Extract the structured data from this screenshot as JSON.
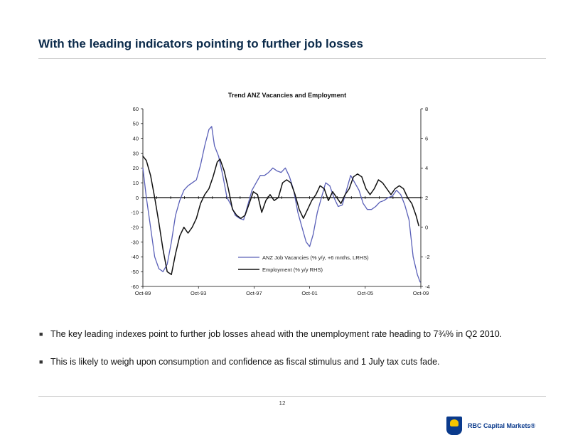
{
  "slide": {
    "title": "With the leading indicators pointing to further job losses",
    "page_number": "12",
    "logo_text": "RBC Capital Markets®"
  },
  "bullets": [
    "The key leading indexes point to further job losses ahead with the unemployment rate heading to 7¾% in Q2 2010.",
    "This is likely to weigh upon consumption and confidence as fiscal stimulus and 1 July tax cuts fade."
  ],
  "colors": {
    "title": "#0b2a4a",
    "vacancies": "#5a60b8",
    "employment": "#111111",
    "brand": "#0a3a8c"
  },
  "chart_data": {
    "type": "line",
    "title": "Trend ANZ Vacancies and Employment",
    "x_tick_labels": [
      "Oct-89",
      "Oct-93",
      "Oct-97",
      "Oct-01",
      "Oct-05",
      "Oct-09"
    ],
    "x_range": [
      1989.75,
      2009.75
    ],
    "y_left": {
      "range": [
        -60,
        60
      ],
      "ticks": [
        60,
        50,
        40,
        30,
        20,
        10,
        0,
        -10,
        -20,
        -30,
        -40,
        -50,
        -60
      ]
    },
    "y_right": {
      "range": [
        -4,
        8
      ],
      "ticks": [
        8,
        6,
        4,
        2,
        0,
        -2,
        -4
      ]
    },
    "legend_position": "bottom-right",
    "series": [
      {
        "name": "ANZ Job Vacancies (% y/y, +6 mnths, LRHS)",
        "axis": "left",
        "color": "#5a60b8",
        "points": [
          [
            1989.75,
            20
          ],
          [
            1990.0,
            0
          ],
          [
            1990.3,
            -20
          ],
          [
            1990.6,
            -40
          ],
          [
            1990.9,
            -48
          ],
          [
            1991.2,
            -50
          ],
          [
            1991.5,
            -45
          ],
          [
            1991.8,
            -30
          ],
          [
            1992.1,
            -12
          ],
          [
            1992.4,
            -2
          ],
          [
            1992.7,
            5
          ],
          [
            1993.0,
            8
          ],
          [
            1993.3,
            10
          ],
          [
            1993.6,
            12
          ],
          [
            1993.9,
            22
          ],
          [
            1994.2,
            35
          ],
          [
            1994.5,
            46
          ],
          [
            1994.7,
            48
          ],
          [
            1994.9,
            35
          ],
          [
            1995.2,
            28
          ],
          [
            1995.5,
            15
          ],
          [
            1995.8,
            0
          ],
          [
            1996.1,
            -5
          ],
          [
            1996.4,
            -12
          ],
          [
            1996.7,
            -14
          ],
          [
            1997.0,
            -15
          ],
          [
            1997.3,
            -5
          ],
          [
            1997.6,
            5
          ],
          [
            1997.9,
            10
          ],
          [
            1998.2,
            15
          ],
          [
            1998.5,
            15
          ],
          [
            1998.8,
            17
          ],
          [
            1999.1,
            20
          ],
          [
            1999.4,
            18
          ],
          [
            1999.7,
            17
          ],
          [
            2000.0,
            20
          ],
          [
            2000.3,
            14
          ],
          [
            2000.6,
            5
          ],
          [
            2000.9,
            -10
          ],
          [
            2001.2,
            -20
          ],
          [
            2001.5,
            -30
          ],
          [
            2001.75,
            -33
          ],
          [
            2002.0,
            -25
          ],
          [
            2002.3,
            -10
          ],
          [
            2002.6,
            0
          ],
          [
            2002.9,
            10
          ],
          [
            2003.2,
            8
          ],
          [
            2003.5,
            0
          ],
          [
            2003.8,
            -6
          ],
          [
            2004.1,
            -5
          ],
          [
            2004.4,
            5
          ],
          [
            2004.7,
            15
          ],
          [
            2005.0,
            10
          ],
          [
            2005.3,
            5
          ],
          [
            2005.6,
            -4
          ],
          [
            2005.9,
            -8
          ],
          [
            2006.2,
            -8
          ],
          [
            2006.5,
            -6
          ],
          [
            2006.8,
            -3
          ],
          [
            2007.1,
            -2
          ],
          [
            2007.4,
            0
          ],
          [
            2007.7,
            1
          ],
          [
            2008.0,
            5
          ],
          [
            2008.3,
            2
          ],
          [
            2008.6,
            -5
          ],
          [
            2008.9,
            -15
          ],
          [
            2009.2,
            -40
          ],
          [
            2009.5,
            -52
          ],
          [
            2009.7,
            -57
          ]
        ]
      },
      {
        "name": "Employment (% y/y RHS)",
        "axis": "right",
        "color": "#111111",
        "points": [
          [
            1989.75,
            4.8
          ],
          [
            1990.0,
            4.5
          ],
          [
            1990.3,
            3.5
          ],
          [
            1990.6,
            2.0
          ],
          [
            1990.9,
            0.3
          ],
          [
            1991.2,
            -1.5
          ],
          [
            1991.5,
            -3.0
          ],
          [
            1991.8,
            -3.2
          ],
          [
            1992.1,
            -1.8
          ],
          [
            1992.4,
            -0.6
          ],
          [
            1992.7,
            0.0
          ],
          [
            1993.0,
            -0.4
          ],
          [
            1993.3,
            0.0
          ],
          [
            1993.6,
            0.6
          ],
          [
            1993.9,
            1.6
          ],
          [
            1994.2,
            2.2
          ],
          [
            1994.5,
            2.6
          ],
          [
            1994.8,
            3.4
          ],
          [
            1995.1,
            4.4
          ],
          [
            1995.3,
            4.6
          ],
          [
            1995.6,
            3.8
          ],
          [
            1995.9,
            2.6
          ],
          [
            1996.2,
            1.2
          ],
          [
            1996.5,
            0.8
          ],
          [
            1996.8,
            0.6
          ],
          [
            1997.1,
            0.8
          ],
          [
            1997.4,
            1.6
          ],
          [
            1997.7,
            2.4
          ],
          [
            1998.0,
            2.2
          ],
          [
            1998.3,
            1.0
          ],
          [
            1998.6,
            1.8
          ],
          [
            1998.9,
            2.2
          ],
          [
            1999.2,
            1.8
          ],
          [
            1999.5,
            2.0
          ],
          [
            1999.8,
            3.0
          ],
          [
            2000.1,
            3.2
          ],
          [
            2000.4,
            3.0
          ],
          [
            2000.7,
            2.2
          ],
          [
            2001.0,
            1.2
          ],
          [
            2001.3,
            0.6
          ],
          [
            2001.6,
            1.2
          ],
          [
            2001.9,
            1.8
          ],
          [
            2002.2,
            2.2
          ],
          [
            2002.5,
            2.8
          ],
          [
            2002.8,
            2.6
          ],
          [
            2003.1,
            1.8
          ],
          [
            2003.4,
            2.4
          ],
          [
            2003.7,
            2.0
          ],
          [
            2004.0,
            1.6
          ],
          [
            2004.3,
            2.2
          ],
          [
            2004.6,
            2.6
          ],
          [
            2004.9,
            3.4
          ],
          [
            2005.2,
            3.6
          ],
          [
            2005.5,
            3.4
          ],
          [
            2005.8,
            2.6
          ],
          [
            2006.1,
            2.2
          ],
          [
            2006.4,
            2.6
          ],
          [
            2006.7,
            3.2
          ],
          [
            2007.0,
            3.0
          ],
          [
            2007.3,
            2.6
          ],
          [
            2007.6,
            2.2
          ],
          [
            2007.9,
            2.6
          ],
          [
            2008.2,
            2.8
          ],
          [
            2008.5,
            2.6
          ],
          [
            2008.8,
            2.0
          ],
          [
            2009.1,
            1.6
          ],
          [
            2009.4,
            0.8
          ],
          [
            2009.6,
            0.1
          ]
        ]
      }
    ]
  }
}
